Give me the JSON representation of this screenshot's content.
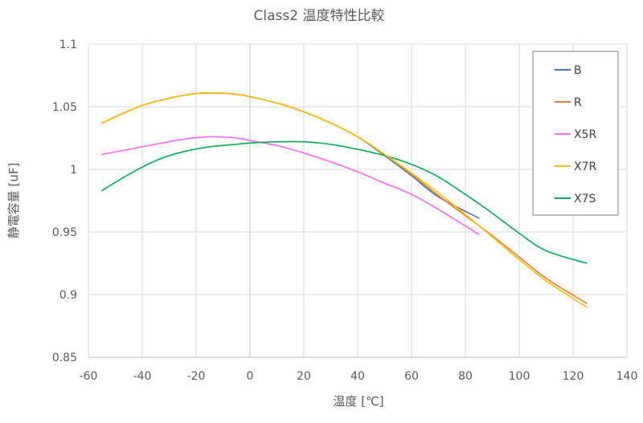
{
  "chart_data": {
    "type": "line",
    "title": "Class2 温度特性比較",
    "xlabel": "温度 [℃]",
    "ylabel": "静電容量 [uF]",
    "xlim": [
      -60,
      140
    ],
    "ylim": [
      0.85,
      1.1
    ],
    "x_ticks": [
      -60,
      -40,
      -20,
      0,
      20,
      40,
      60,
      80,
      100,
      120,
      140
    ],
    "y_ticks": [
      0.85,
      0.9,
      0.95,
      1,
      1.05,
      1.1
    ],
    "x_tick_labels": [
      "-60",
      "-40",
      "-20",
      "0",
      "20",
      "40",
      "60",
      "80",
      "100",
      "120",
      "140"
    ],
    "y_tick_labels": [
      "0.85",
      "0.9",
      "0.95",
      "1",
      "1.05",
      "1.1"
    ],
    "grid": true,
    "legend_position": "top-right",
    "series": [
      {
        "name": "B",
        "color": "#4472c4",
        "x": [
          -55,
          -40,
          -25,
          -15,
          -5,
          0,
          10,
          20,
          30,
          40,
          50,
          60,
          70,
          85
        ],
        "y": [
          1.037,
          1.051,
          1.059,
          1.061,
          1.06,
          1.058,
          1.053,
          1.046,
          1.037,
          1.026,
          1.011,
          0.995,
          0.978,
          0.961
        ]
      },
      {
        "name": "R",
        "color": "#ed7d31",
        "x": [
          -55,
          -40,
          -25,
          -15,
          -5,
          0,
          10,
          20,
          30,
          40,
          50,
          60,
          70,
          80,
          90,
          100,
          110,
          125
        ],
        "y": [
          1.037,
          1.051,
          1.059,
          1.061,
          1.06,
          1.058,
          1.053,
          1.046,
          1.037,
          1.026,
          1.012,
          0.996,
          0.979,
          0.963,
          0.947,
          0.93,
          0.913,
          0.893
        ]
      },
      {
        "name": "X5R",
        "color": "#ff66ff",
        "x": [
          -55,
          -40,
          -25,
          -15,
          -5,
          0,
          10,
          20,
          30,
          40,
          50,
          60,
          70,
          85
        ],
        "y": [
          1.012,
          1.018,
          1.024,
          1.026,
          1.025,
          1.023,
          1.019,
          1.013,
          1.006,
          0.998,
          0.989,
          0.98,
          0.968,
          0.948
        ]
      },
      {
        "name": "X7R",
        "color": "#ffc000",
        "x": [
          -55,
          -40,
          -25,
          -15,
          -5,
          0,
          10,
          20,
          30,
          40,
          50,
          60,
          70,
          80,
          90,
          100,
          110,
          125
        ],
        "y": [
          1.037,
          1.051,
          1.059,
          1.061,
          1.06,
          1.058,
          1.053,
          1.046,
          1.037,
          1.026,
          1.012,
          0.997,
          0.981,
          0.964,
          0.946,
          0.928,
          0.911,
          0.89
        ]
      },
      {
        "name": "X7S",
        "color": "#00b050",
        "x": [
          -55,
          -45,
          -35,
          -25,
          -15,
          -5,
          0,
          10,
          20,
          30,
          40,
          50,
          60,
          70,
          80,
          90,
          100,
          110,
          125
        ],
        "y": [
          0.983,
          0.996,
          1.007,
          1.014,
          1.018,
          1.02,
          1.021,
          1.022,
          1.022,
          1.02,
          1.016,
          1.011,
          1.004,
          0.994,
          0.98,
          0.965,
          0.949,
          0.935,
          0.925
        ]
      }
    ]
  }
}
